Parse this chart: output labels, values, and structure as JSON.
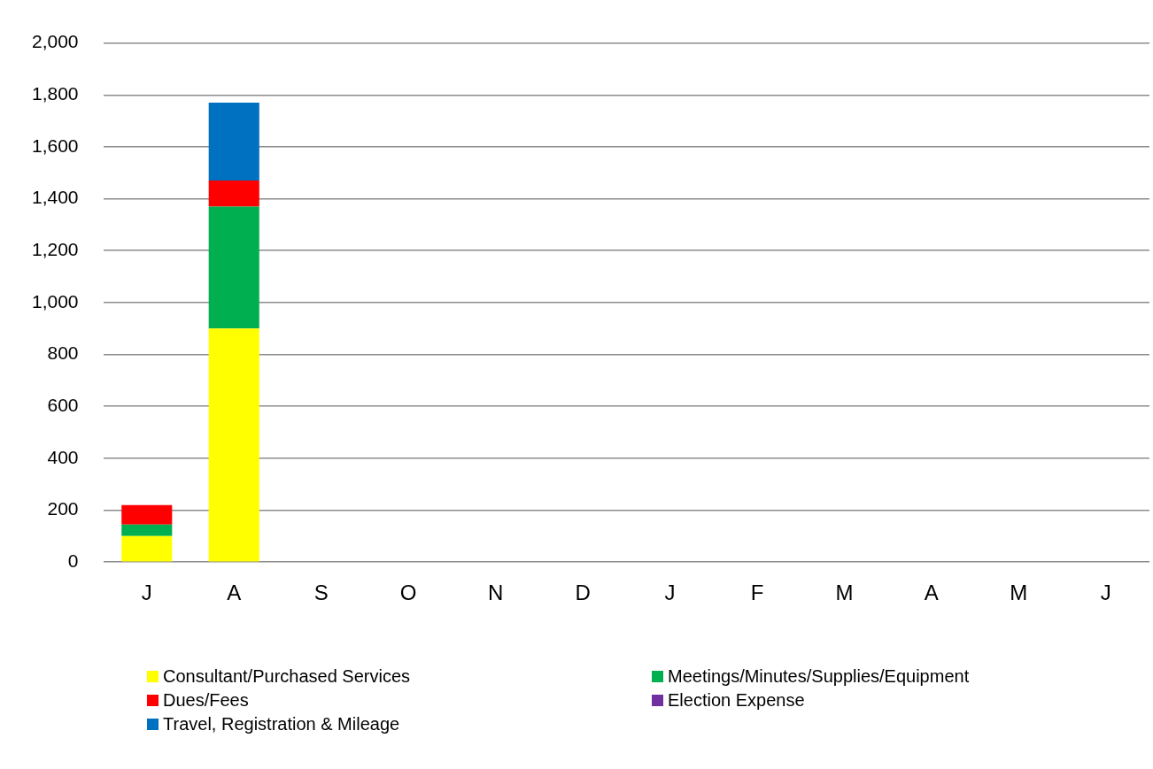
{
  "chart_data": {
    "type": "bar",
    "stacked": true,
    "categories": [
      "J",
      "A",
      "S",
      "O",
      "N",
      "D",
      "J",
      "F",
      "M",
      "A",
      "M",
      "J"
    ],
    "series": [
      {
        "name": "Consultant/Purchased Services",
        "color": "#ffff00",
        "values": [
          100,
          900,
          null,
          null,
          null,
          null,
          null,
          null,
          null,
          null,
          null,
          null
        ]
      },
      {
        "name": "Meetings/Minutes/Supplies/Equipment",
        "color": "#00b050",
        "values": [
          45,
          470,
          null,
          null,
          null,
          null,
          null,
          null,
          null,
          null,
          null,
          null
        ]
      },
      {
        "name": "Dues/Fees",
        "color": "#ff0000",
        "values": [
          75,
          100,
          null,
          null,
          null,
          null,
          null,
          null,
          null,
          null,
          null,
          null
        ]
      },
      {
        "name": "Election Expense",
        "color": "#7030a0",
        "values": [
          null,
          null,
          null,
          null,
          null,
          null,
          null,
          null,
          null,
          null,
          null,
          null
        ]
      },
      {
        "name": "Travel, Registration & Mileage",
        "color": "#0070c0",
        "values": [
          null,
          300,
          null,
          null,
          null,
          null,
          null,
          null,
          null,
          null,
          null,
          null
        ]
      }
    ],
    "ylim": [
      0,
      2000
    ],
    "yticks": [
      0,
      200,
      400,
      600,
      800,
      {
        "value": 1000,
        "label": "1,000"
      },
      {
        "value": 1200,
        "label": "1,200"
      },
      {
        "value": 1400,
        "label": "1,400"
      },
      {
        "value": 1600,
        "label": "1,600"
      },
      {
        "value": 1800,
        "label": "1,800"
      },
      {
        "value": 2000,
        "label": "2,000"
      }
    ],
    "grid": "y",
    "legend": "bottom"
  }
}
